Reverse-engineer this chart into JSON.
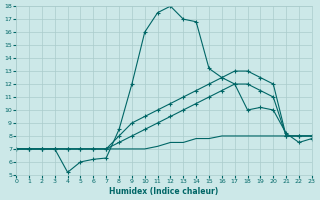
{
  "xlabel": "Humidex (Indice chaleur)",
  "bg_color": "#cce8e8",
  "grid_color": "#aacccc",
  "line_color": "#006666",
  "xmin": 0,
  "xmax": 23,
  "ymin": 5,
  "ymax": 18,
  "x_ticks": [
    0,
    1,
    2,
    3,
    4,
    5,
    6,
    7,
    8,
    9,
    10,
    11,
    12,
    13,
    14,
    15,
    16,
    17,
    18,
    19,
    20,
    21,
    22,
    23
  ],
  "y_ticks": [
    5,
    6,
    7,
    8,
    9,
    10,
    11,
    12,
    13,
    14,
    15,
    16,
    17,
    18
  ],
  "series": [
    {
      "x": [
        0,
        1,
        2,
        3,
        4,
        5,
        6,
        7,
        8,
        9,
        10,
        11,
        12,
        13,
        14,
        15,
        16,
        17,
        18,
        19,
        20,
        21,
        22,
        23
      ],
      "y": [
        7,
        7,
        7,
        7,
        5.2,
        6,
        6.2,
        6.3,
        8.5,
        12,
        16,
        17.5,
        18,
        17,
        16.8,
        13.2,
        12.5,
        12,
        10,
        10.2,
        10,
        8.2,
        7.5,
        7.8
      ],
      "marker": true
    },
    {
      "x": [
        0,
        1,
        2,
        3,
        4,
        5,
        6,
        7,
        8,
        9,
        10,
        11,
        12,
        13,
        14,
        15,
        16,
        17,
        18,
        19,
        20,
        21,
        22,
        23
      ],
      "y": [
        7,
        7,
        7,
        7,
        7,
        7,
        7,
        7,
        8,
        9,
        9.5,
        10,
        10.5,
        11,
        11.5,
        12,
        12.5,
        13,
        13,
        12.5,
        12,
        8,
        8,
        8
      ],
      "marker": true
    },
    {
      "x": [
        0,
        1,
        2,
        3,
        4,
        5,
        6,
        7,
        8,
        9,
        10,
        11,
        12,
        13,
        14,
        15,
        16,
        17,
        18,
        19,
        20,
        21,
        22,
        23
      ],
      "y": [
        7,
        7,
        7,
        7,
        7,
        7,
        7,
        7,
        7.5,
        8,
        8.5,
        9,
        9.5,
        10,
        10.5,
        11,
        11.5,
        12,
        12,
        11.5,
        11,
        8,
        8,
        8
      ],
      "marker": true
    },
    {
      "x": [
        0,
        1,
        2,
        3,
        4,
        5,
        6,
        7,
        8,
        9,
        10,
        11,
        12,
        13,
        14,
        15,
        16,
        17,
        18,
        19,
        20,
        21,
        22,
        23
      ],
      "y": [
        7,
        7,
        7,
        7,
        7,
        7,
        7,
        7,
        7,
        7,
        7,
        7.2,
        7.5,
        7.5,
        7.8,
        7.8,
        8,
        8,
        8,
        8,
        8,
        8,
        8,
        8
      ],
      "marker": false
    }
  ]
}
